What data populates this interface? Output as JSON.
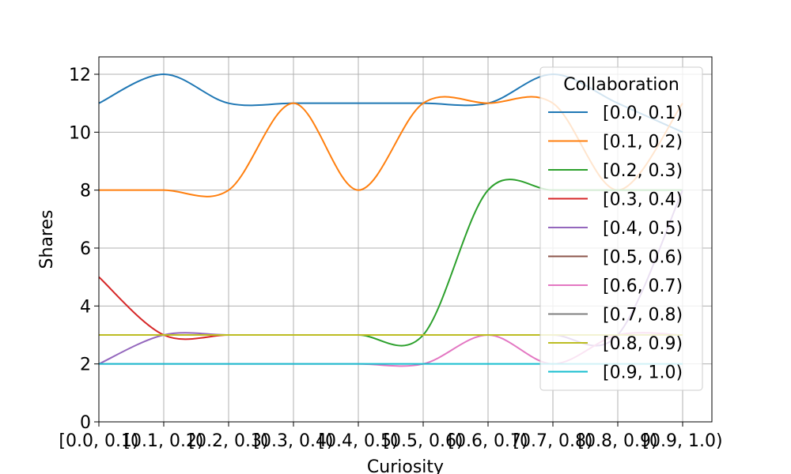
{
  "chart_data": {
    "type": "line",
    "xlabel": "Curiosity",
    "ylabel": "Shares",
    "categories": [
      "[0.0, 0.1)",
      "[0.1, 0.2)",
      "[0.2, 0.3)",
      "[0.3, 0.4)",
      "[0.4, 0.5)",
      "[0.5, 0.6)",
      "[0.6, 0.7)",
      "[0.7, 0.8)",
      "[0.8, 0.9)",
      "[0.9, 1.0)"
    ],
    "ylim": [
      0,
      12.6
    ],
    "yticks": [
      0,
      2,
      4,
      6,
      8,
      10,
      12
    ],
    "grid": true,
    "smooth": true,
    "legend": {
      "title": "Collaboration",
      "placement": "upper right"
    },
    "series": [
      {
        "name": "[0.0, 0.1)",
        "color": "#1f77b4",
        "values": [
          11,
          12,
          11,
          11,
          11,
          11,
          11,
          12,
          11,
          10
        ]
      },
      {
        "name": "[0.1, 0.2)",
        "color": "#ff7f0e",
        "values": [
          8,
          8,
          8,
          11,
          8,
          11,
          11,
          11,
          8,
          11
        ]
      },
      {
        "name": "[0.2, 0.3)",
        "color": "#2ca02c",
        "values": [
          3,
          3,
          3,
          3,
          3,
          3,
          8,
          8,
          8,
          8
        ]
      },
      {
        "name": "[0.3, 0.4)",
        "color": "#d62728",
        "values": [
          5,
          3,
          3,
          3,
          3,
          3,
          3,
          3,
          3,
          3
        ]
      },
      {
        "name": "[0.4, 0.5)",
        "color": "#9467bd",
        "values": [
          2,
          3,
          3,
          3,
          3,
          3,
          3,
          3,
          3,
          8
        ]
      },
      {
        "name": "[0.5, 0.6)",
        "color": "#8c564b",
        "values": [
          3,
          3,
          3,
          3,
          3,
          3,
          3,
          3,
          3,
          3
        ]
      },
      {
        "name": "[0.6, 0.7)",
        "color": "#e377c2",
        "values": [
          2,
          2,
          2,
          2,
          2,
          2,
          3,
          2,
          3,
          3
        ]
      },
      {
        "name": "[0.7, 0.8)",
        "color": "#7f7f7f",
        "values": [
          3,
          3,
          3,
          3,
          3,
          3,
          3,
          3,
          3,
          3
        ]
      },
      {
        "name": "[0.8, 0.9)",
        "color": "#bcbd22",
        "values": [
          3,
          3,
          3,
          3,
          3,
          3,
          3,
          3,
          3,
          3
        ]
      },
      {
        "name": "[0.9, 1.0)",
        "color": "#17becf",
        "values": [
          2,
          2,
          2,
          2,
          2,
          2,
          2,
          2,
          2,
          2
        ]
      }
    ]
  }
}
